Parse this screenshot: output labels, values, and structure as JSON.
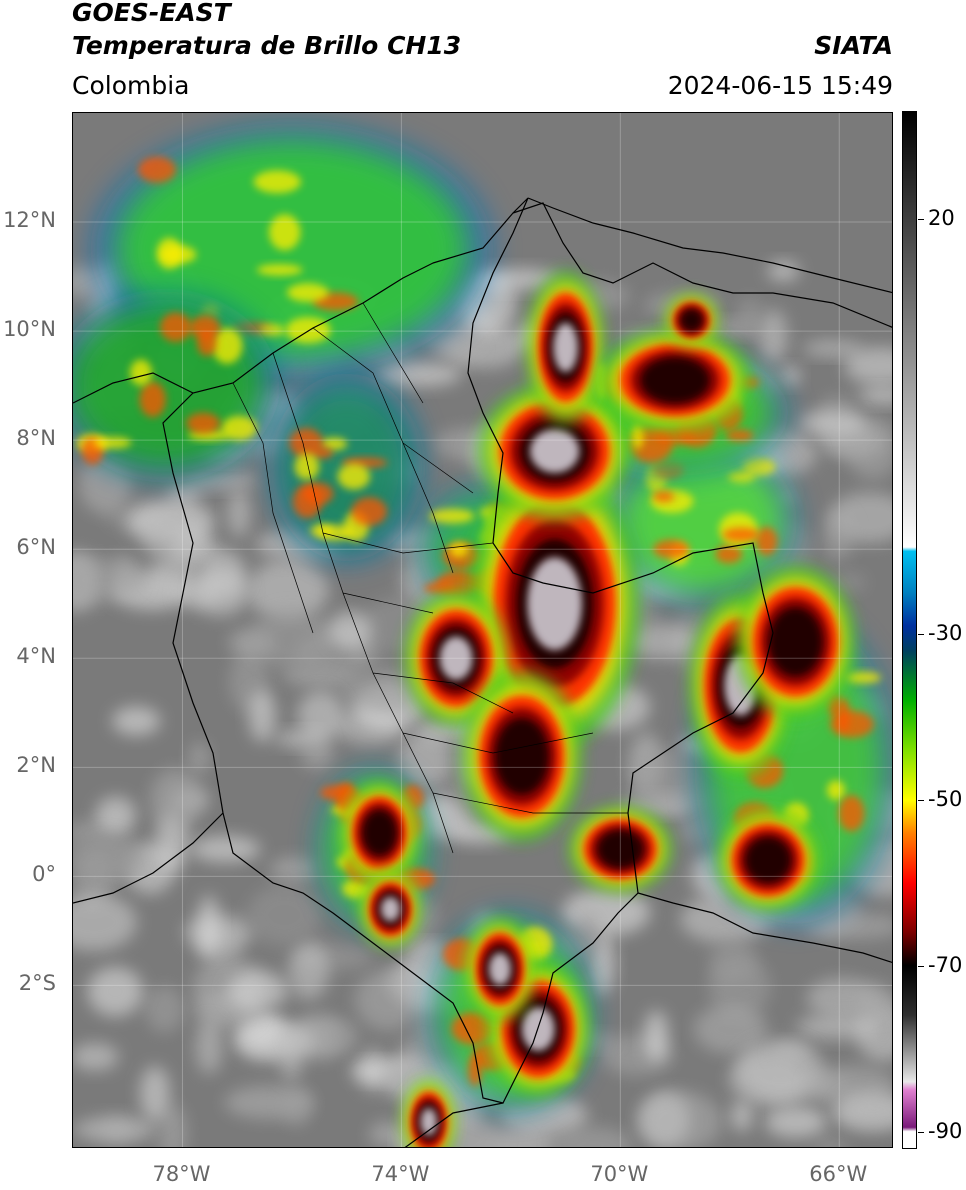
{
  "header": {
    "satellite": "GOES-EAST",
    "product": "Temperatura de Brillo CH13",
    "region": "Colombia",
    "agency": "SIATA",
    "timestamp": "2024-06-15 15:49"
  },
  "map": {
    "lat_range": [
      -5,
      14
    ],
    "lon_range": [
      -80,
      -65
    ],
    "lat_ticks": [
      {
        "value": 12,
        "label": "12°N"
      },
      {
        "value": 10,
        "label": "10°N"
      },
      {
        "value": 8,
        "label": "8°N"
      },
      {
        "value": 6,
        "label": "6°N"
      },
      {
        "value": 4,
        "label": "4°N"
      },
      {
        "value": 2,
        "label": "2°N"
      },
      {
        "value": 0,
        "label": "0°"
      },
      {
        "value": -2,
        "label": "2°S"
      }
    ],
    "lon_ticks": [
      {
        "value": -78,
        "label": "78°W"
      },
      {
        "value": -74,
        "label": "74°W"
      },
      {
        "value": -70,
        "label": "70°W"
      },
      {
        "value": -66,
        "label": "66°W"
      }
    ],
    "background_color": "#7a7a7a"
  },
  "colorbar": {
    "range": [
      -92,
      33
    ],
    "ticks": [
      {
        "value": 20,
        "label": "20"
      },
      {
        "value": -30,
        "label": "-30"
      },
      {
        "value": -50,
        "label": "-50"
      },
      {
        "value": -70,
        "label": "-70"
      },
      {
        "value": -90,
        "label": "-90"
      }
    ],
    "stops": [
      {
        "value": -92,
        "color": "#ffffff"
      },
      {
        "value": -90,
        "color": "#ffffff"
      },
      {
        "value": -89.5,
        "color": "#7a1a7a"
      },
      {
        "value": -85,
        "color": "#e080d0"
      },
      {
        "value": -84,
        "color": "#e8e8e8"
      },
      {
        "value": -76,
        "color": "#303030"
      },
      {
        "value": -70,
        "color": "#000000"
      },
      {
        "value": -66,
        "color": "#7a0000"
      },
      {
        "value": -60,
        "color": "#ff0000"
      },
      {
        "value": -54,
        "color": "#ff8000"
      },
      {
        "value": -50,
        "color": "#ffff00"
      },
      {
        "value": -44,
        "color": "#80e000"
      },
      {
        "value": -38,
        "color": "#00b000"
      },
      {
        "value": -32,
        "color": "#004060"
      },
      {
        "value": -29,
        "color": "#0030a0"
      },
      {
        "value": -25,
        "color": "#0080c0"
      },
      {
        "value": -20,
        "color": "#00c0f0"
      },
      {
        "value": -19.5,
        "color": "#ffffff"
      },
      {
        "value": 0,
        "color": "#a0a0a0"
      },
      {
        "value": 33,
        "color": "#000000"
      }
    ]
  },
  "storm_cells": [
    {
      "lon": -71.2,
      "lat": 5.0,
      "rx": 1.0,
      "ry": 1.7,
      "core": "gray"
    },
    {
      "lon": -73.0,
      "lat": 4.0,
      "rx": 0.6,
      "ry": 0.8,
      "core": "gray"
    },
    {
      "lon": -71.2,
      "lat": 7.8,
      "rx": 0.9,
      "ry": 0.8,
      "core": "gray"
    },
    {
      "lon": -71.0,
      "lat": 9.7,
      "rx": 0.45,
      "ry": 0.9,
      "core": "gray"
    },
    {
      "lon": -69.0,
      "lat": 9.1,
      "rx": 0.9,
      "ry": 0.6,
      "core": "red"
    },
    {
      "lon": -67.8,
      "lat": 3.5,
      "rx": 0.6,
      "ry": 1.1,
      "core": "gray"
    },
    {
      "lon": -66.8,
      "lat": 4.3,
      "rx": 0.7,
      "ry": 0.9,
      "core": "red"
    },
    {
      "lon": -71.8,
      "lat": 2.2,
      "rx": 0.7,
      "ry": 1.0,
      "core": "red"
    },
    {
      "lon": -74.4,
      "lat": 0.8,
      "rx": 0.45,
      "ry": 0.6,
      "core": "red"
    },
    {
      "lon": -74.2,
      "lat": -0.6,
      "rx": 0.35,
      "ry": 0.45,
      "core": "gray"
    },
    {
      "lon": -71.5,
      "lat": -2.8,
      "rx": 0.6,
      "ry": 0.8,
      "core": "gray"
    },
    {
      "lon": -72.2,
      "lat": -1.7,
      "rx": 0.4,
      "ry": 0.6,
      "core": "gray"
    },
    {
      "lon": -70.0,
      "lat": 0.5,
      "rx": 0.6,
      "ry": 0.5,
      "core": "red"
    },
    {
      "lon": -67.3,
      "lat": 0.3,
      "rx": 0.6,
      "ry": 0.6,
      "core": "red"
    },
    {
      "lon": -73.5,
      "lat": -4.5,
      "rx": 0.3,
      "ry": 0.5,
      "core": "gray"
    },
    {
      "lon": -68.7,
      "lat": 10.2,
      "rx": 0.3,
      "ry": 0.3,
      "core": "red"
    }
  ],
  "cloud_fields": [
    {
      "lon": -76.0,
      "lat": 11.5,
      "rx": 3.2,
      "ry": 2.0,
      "color": "#33cc33"
    },
    {
      "lon": -78.3,
      "lat": 9.0,
      "rx": 1.8,
      "ry": 1.5,
      "color": "#22aa22"
    },
    {
      "lon": -75.0,
      "lat": 7.5,
      "rx": 1.2,
      "ry": 1.5,
      "color": "#1a8a5a"
    },
    {
      "lon": -66.8,
      "lat": 2.0,
      "rx": 1.6,
      "ry": 2.5,
      "color": "#44cc33"
    },
    {
      "lon": -68.5,
      "lat": 6.5,
      "rx": 1.5,
      "ry": 1.3,
      "color": "#55dd33"
    },
    {
      "lon": -69.0,
      "lat": 8.5,
      "rx": 1.8,
      "ry": 1.0,
      "color": "#44cc22"
    },
    {
      "lon": -72.5,
      "lat": 6.0,
      "rx": 1.0,
      "ry": 1.0,
      "color": "#33bb44"
    },
    {
      "lon": -72.0,
      "lat": -2.5,
      "rx": 1.3,
      "ry": 1.6,
      "color": "#44cc33"
    },
    {
      "lon": -74.5,
      "lat": 0.5,
      "rx": 0.9,
      "ry": 1.3,
      "color": "#44cc33"
    }
  ],
  "annotations": []
}
